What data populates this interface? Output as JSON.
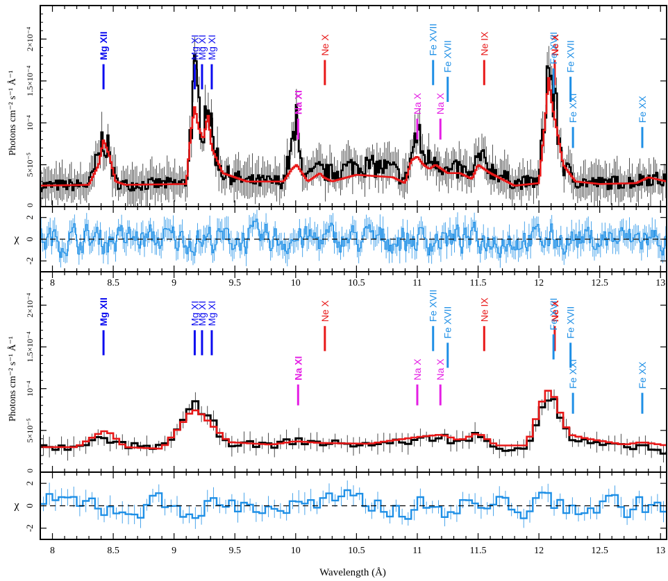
{
  "figure": {
    "x_label": "Wavelength (Å)",
    "y_label_flux": "Photons cm⁻² s⁻¹ Å⁻¹",
    "y_label_resid": "χ"
  },
  "chart_data": [
    {
      "type": "line",
      "panel": "upper spectrum (high resolution)",
      "xlim": [
        7.9,
        13.05
      ],
      "ylim": [
        0,
        0.00024
      ],
      "yticks": [
        {
          "value": 5e-05,
          "label": "5×10⁻⁵"
        },
        {
          "value": 0.0001,
          "label": "10⁻⁴"
        },
        {
          "value": 0.00015,
          "label": "1.5×10⁻⁴"
        },
        {
          "value": 0.0002,
          "label": "2×10⁻⁴"
        }
      ],
      "xticks": [
        8,
        8.5,
        9,
        9.5,
        10,
        10.5,
        11,
        11.5,
        12,
        12.5,
        13
      ],
      "series": [
        {
          "color": "#000000",
          "style": "data histogram with error bars",
          "x": [
            7.9,
            8.3,
            8.38,
            8.42,
            8.47,
            8.52,
            8.6,
            9.1,
            9.14,
            9.17,
            9.2,
            9.24,
            9.28,
            9.31,
            9.4,
            9.6,
            9.9,
            9.97,
            10.01,
            10.03,
            10.1,
            10.2,
            10.23,
            10.3,
            10.5,
            10.8,
            10.9,
            10.95,
            11.0,
            11.05,
            11.1,
            11.15,
            11.25,
            11.35,
            11.45,
            11.5,
            11.6,
            11.8,
            12.0,
            12.05,
            12.08,
            12.11,
            12.15,
            12.2,
            12.3,
            12.5,
            12.8,
            12.9,
            13.05
          ],
          "y": [
            2.5e-05,
            2.6e-05,
            6e-05,
            8.5e-05,
            6e-05,
            3e-05,
            2.6e-05,
            2.8e-05,
            0.0001,
            0.00015,
            0.00012,
            9.5e-05,
            0.00014,
            8e-05,
            4e-05,
            3e-05,
            3e-05,
            7e-05,
            0.0001,
            6e-05,
            3.5e-05,
            4.5e-05,
            4e-05,
            4e-05,
            5e-05,
            4.5e-05,
            3e-05,
            6e-05,
            9e-05,
            6e-05,
            5.5e-05,
            6e-05,
            4e-05,
            4.5e-05,
            3.5e-05,
            6e-05,
            4.5e-05,
            2.8e-05,
            3e-05,
            0.00012,
            0.00017,
            0.00014,
            0.0001,
            5e-05,
            3e-05,
            2.8e-05,
            3e-05,
            3.5e-05,
            3e-05
          ]
        },
        {
          "color": "#e81818",
          "style": "model",
          "x": [
            7.9,
            8.3,
            8.38,
            8.42,
            8.47,
            8.52,
            8.6,
            9.1,
            9.14,
            9.17,
            9.2,
            9.24,
            9.28,
            9.31,
            9.4,
            9.6,
            9.9,
            9.97,
            10.01,
            10.03,
            10.1,
            10.2,
            10.23,
            10.3,
            10.5,
            10.8,
            10.9,
            10.95,
            11.0,
            11.05,
            11.1,
            11.15,
            11.25,
            11.35,
            11.45,
            11.5,
            11.6,
            11.8,
            12.0,
            12.05,
            12.08,
            12.11,
            12.15,
            12.2,
            12.3,
            12.5,
            12.8,
            12.9,
            13.05
          ],
          "y": [
            2.5e-05,
            2.6e-05,
            5e-05,
            8e-05,
            6e-05,
            3e-05,
            2.6e-05,
            2.7e-05,
            9e-05,
            0.00012,
            9.5e-05,
            8e-05,
            0.00011,
            7e-05,
            4e-05,
            3e-05,
            3e-05,
            4.5e-05,
            5e-05,
            4.5e-05,
            3e-05,
            4e-05,
            3.5e-05,
            3e-05,
            3.8e-05,
            3.5e-05,
            2.8e-05,
            5.5e-05,
            6e-05,
            5e-05,
            4.5e-05,
            5e-05,
            4e-05,
            4e-05,
            3.3e-05,
            5e-05,
            4e-05,
            2.5e-05,
            2.8e-05,
            0.0001,
            0.000155,
            0.00012,
            9e-05,
            5e-05,
            3e-05,
            2.7e-05,
            2.8e-05,
            3.5e-05,
            3e-05
          ]
        }
      ]
    },
    {
      "type": "line",
      "panel": "upper residuals",
      "ylim": [
        -3,
        3
      ],
      "yticks": [
        -2,
        0,
        2
      ],
      "series": [
        {
          "color": "#1e8fe6",
          "style": "residual histogram with error bars, noisy around zero"
        }
      ]
    },
    {
      "type": "line",
      "panel": "lower spectrum (low resolution)",
      "xlim": [
        7.9,
        13.05
      ],
      "ylim": [
        0,
        0.00024
      ],
      "yticks": [
        {
          "value": 5e-05,
          "label": "5×10⁻⁵"
        },
        {
          "value": 0.0001,
          "label": "10⁻⁴"
        },
        {
          "value": 0.00015,
          "label": "1.5×10⁻⁴"
        },
        {
          "value": 0.0002,
          "label": "2×10⁻⁴"
        }
      ],
      "xticks": [
        8,
        8.5,
        9,
        9.5,
        10,
        10.5,
        11,
        11.5,
        12,
        12.5,
        13
      ],
      "series": [
        {
          "color": "#000000",
          "style": "data histogram with error bars",
          "x": [
            7.9,
            8.2,
            8.4,
            8.45,
            8.6,
            8.9,
            9.05,
            9.15,
            9.2,
            9.3,
            9.45,
            9.8,
            10.0,
            10.2,
            10.6,
            11.0,
            11.2,
            11.35,
            11.5,
            11.65,
            11.9,
            12.05,
            12.1,
            12.15,
            12.25,
            12.4,
            12.7,
            12.85,
            13.05
          ],
          "y": [
            3e-05,
            2.8e-05,
            4e-05,
            3.8e-05,
            3.2e-05,
            3e-05,
            5.5e-05,
            7.5e-05,
            7.8e-05,
            6e-05,
            3.5e-05,
            3.2e-05,
            3.8e-05,
            3.5e-05,
            3.3e-05,
            3.8e-05,
            4.3e-05,
            3.5e-05,
            4.5e-05,
            2.8e-05,
            3e-05,
            8.8e-05,
            9.2e-05,
            7.5e-05,
            4e-05,
            3.5e-05,
            3e-05,
            3.2e-05,
            2.2e-05
          ]
        },
        {
          "color": "#e81818",
          "style": "model",
          "x": [
            7.9,
            8.2,
            8.4,
            8.45,
            8.6,
            8.9,
            9.05,
            9.15,
            9.2,
            9.3,
            9.45,
            9.8,
            10.0,
            10.2,
            10.6,
            11.0,
            11.2,
            11.35,
            11.5,
            11.65,
            11.9,
            12.05,
            12.1,
            12.15,
            12.25,
            12.4,
            12.7,
            12.85,
            13.05
          ],
          "y": [
            3e-05,
            3e-05,
            4.8e-05,
            5e-05,
            3e-05,
            2.8e-05,
            5.5e-05,
            7.5e-05,
            7.3e-05,
            5.8e-05,
            3.6e-05,
            3.3e-05,
            3.7e-05,
            3.5e-05,
            3.4e-05,
            4.2e-05,
            4.5e-05,
            3.8e-05,
            4.7e-05,
            3.2e-05,
            3.2e-05,
            9.5e-05,
            0.0001,
            8e-05,
            4.5e-05,
            4e-05,
            3.3e-05,
            3.6e-05,
            3.2e-05
          ]
        }
      ]
    },
    {
      "type": "line",
      "panel": "lower residuals",
      "ylim": [
        -3,
        3
      ],
      "yticks": [
        -2,
        0,
        2
      ],
      "series": [
        {
          "color": "#1e8fe6",
          "style": "residual histogram with error bars"
        }
      ]
    }
  ],
  "lines": [
    {
      "label": "Mg XII",
      "wave": 8.42,
      "color": "#0a0af0",
      "bold": true,
      "labelDY": 0,
      "tickTop": 0.00017,
      "tickBot": 0.00014
    },
    {
      "label": "Mg XI",
      "wave": 9.17,
      "color": "#0a0af0",
      "bold": false,
      "labelDY": 0,
      "tickTop": 0.00017,
      "tickBot": 0.00014
    },
    {
      "label": "Mg XI",
      "wave": 9.23,
      "color": "#0a0af0",
      "bold": false,
      "labelDY": 0,
      "tickTop": 0.00017,
      "tickBot": 0.00014
    },
    {
      "label": "Mg XI",
      "wave": 9.31,
      "color": "#0a0af0",
      "bold": false,
      "labelDY": 0,
      "tickTop": 0.00017,
      "tickBot": 0.00014
    },
    {
      "label": "Na XI",
      "wave": 10.02,
      "color": "#e41ee4",
      "bold": true,
      "labelDY": 0,
      "tickTop": 0.000105,
      "tickBot": 8e-05
    },
    {
      "label": "Ne X",
      "wave": 10.24,
      "color": "#e81818",
      "bold": false,
      "labelDY": 0,
      "tickTop": 0.000175,
      "tickBot": 0.000145
    },
    {
      "label": "Na X",
      "wave": 11.0,
      "color": "#e41ee4",
      "bold": false,
      "labelDY": 0,
      "tickTop": 0.000105,
      "tickBot": 8e-05
    },
    {
      "label": "Na X",
      "wave": 11.19,
      "color": "#e41ee4",
      "bold": false,
      "labelDY": 0,
      "tickTop": 0.000105,
      "tickBot": 8e-05
    },
    {
      "label": "Fe XVII",
      "wave": 11.13,
      "color": "#1e8fe6",
      "bold": false,
      "labelDY": 0,
      "tickTop": 0.000175,
      "tickBot": 0.000145
    },
    {
      "label": "Fe XVII",
      "wave": 11.25,
      "color": "#1e8fe6",
      "bold": false,
      "labelDY": 0,
      "tickTop": 0.000155,
      "tickBot": 0.000125
    },
    {
      "label": "Ne IX",
      "wave": 11.55,
      "color": "#e81818",
      "bold": false,
      "labelDY": 0,
      "tickTop": 0.000175,
      "tickBot": 0.000145
    },
    {
      "label": "Ne X",
      "wave": 12.13,
      "color": "#e81818",
      "bold": true,
      "labelDY": 0,
      "tickTop": 0.000175,
      "tickBot": 0.000145
    },
    {
      "label": "Fe XVII",
      "wave": 12.12,
      "color": "#1e8fe6",
      "bold": false,
      "labelDY": 0,
      "tickTop": 0.000165,
      "tickBot": 0.000135
    },
    {
      "label": "Fe XVII",
      "wave": 12.26,
      "color": "#1e8fe6",
      "bold": false,
      "labelDY": 0,
      "tickTop": 0.000155,
      "tickBot": 0.000125
    },
    {
      "label": "Fe XXI",
      "wave": 12.28,
      "color": "#1e8fe6",
      "bold": false,
      "labelDY": 0,
      "tickTop": 9.5e-05,
      "tickBot": 7e-05
    },
    {
      "label": "Fe XX",
      "wave": 12.85,
      "color": "#1e8fe6",
      "bold": false,
      "labelDY": 0,
      "tickTop": 9.5e-05,
      "tickBot": 7e-05
    }
  ]
}
